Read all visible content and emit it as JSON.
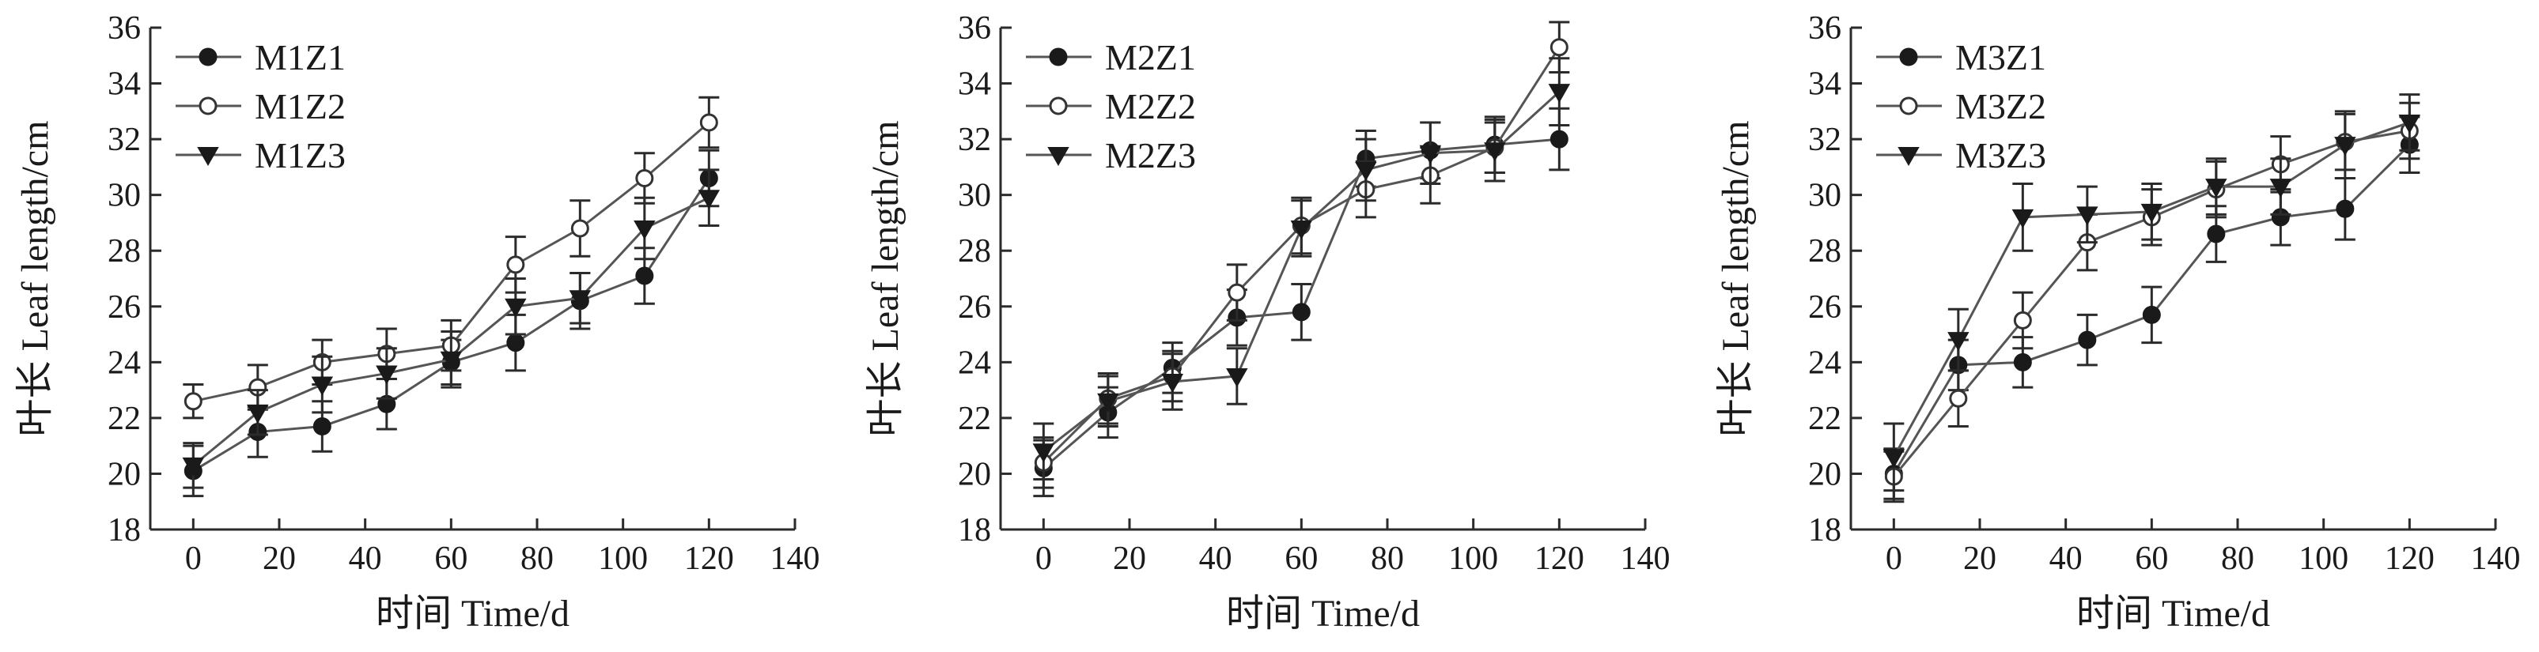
{
  "chart_data": [
    {
      "type": "line",
      "xlabel": "时间 Time/d",
      "ylabel": "叶长 Leaf length/cm",
      "xlim": [
        -10,
        140
      ],
      "ylim": [
        18,
        36
      ],
      "xticks": [
        "0",
        "20",
        "40",
        "60",
        "80",
        "100",
        "120",
        "140"
      ],
      "yticks": [
        "18",
        "20",
        "22",
        "24",
        "26",
        "28",
        "30",
        "32",
        "34",
        "36"
      ],
      "x": [
        0,
        15,
        30,
        45,
        60,
        75,
        90,
        105,
        120
      ],
      "legend": "top-left",
      "series": [
        {
          "name": "M1Z1",
          "marker": "filled-circle",
          "values": [
            20.1,
            21.5,
            21.7,
            22.5,
            24.0,
            24.7,
            26.2,
            27.1,
            30.6
          ],
          "errors": [
            0.9,
            0.9,
            0.9,
            0.9,
            0.8,
            1.0,
            1.0,
            1.0,
            1.0
          ]
        },
        {
          "name": "M1Z2",
          "marker": "open-circle",
          "values": [
            22.6,
            23.1,
            24.0,
            24.3,
            24.6,
            27.5,
            28.8,
            30.6,
            32.6
          ],
          "errors": [
            0.6,
            0.8,
            0.8,
            0.9,
            0.9,
            1.0,
            1.0,
            0.9,
            0.9
          ]
        },
        {
          "name": "M1Z3",
          "marker": "filled-triangle",
          "values": [
            20.3,
            22.2,
            23.2,
            23.6,
            24.1,
            26.0,
            26.3,
            28.8,
            29.9
          ],
          "errors": [
            0.8,
            0.8,
            1.0,
            0.9,
            1.0,
            1.0,
            0.9,
            1.1,
            1.0
          ]
        }
      ]
    },
    {
      "type": "line",
      "xlabel": "时间 Time/d",
      "ylabel": "叶长 Leaf length/cm",
      "xlim": [
        -10,
        140
      ],
      "ylim": [
        18,
        36
      ],
      "xticks": [
        "0",
        "20",
        "40",
        "60",
        "80",
        "100",
        "120",
        "140"
      ],
      "yticks": [
        "18",
        "20",
        "22",
        "24",
        "26",
        "28",
        "30",
        "32",
        "34",
        "36"
      ],
      "x": [
        0,
        15,
        30,
        45,
        60,
        75,
        90,
        105,
        120
      ],
      "legend": "top-left",
      "series": [
        {
          "name": "M2Z1",
          "marker": "filled-circle",
          "values": [
            20.2,
            22.2,
            23.8,
            25.6,
            25.8,
            31.3,
            31.6,
            31.8,
            32.0
          ],
          "errors": [
            1.0,
            0.9,
            0.9,
            1.0,
            1.0,
            1.0,
            1.0,
            1.0,
            1.1
          ]
        },
        {
          "name": "M2Z2",
          "marker": "open-circle",
          "values": [
            20.4,
            22.7,
            23.5,
            26.5,
            28.9,
            30.2,
            30.7,
            31.7,
            35.3
          ],
          "errors": [
            0.9,
            0.9,
            0.9,
            1.0,
            1.0,
            1.0,
            1.0,
            0.9,
            0.9
          ]
        },
        {
          "name": "M2Z3",
          "marker": "filled-triangle",
          "values": [
            20.8,
            22.6,
            23.3,
            23.5,
            28.8,
            30.9,
            31.5,
            31.6,
            33.7
          ],
          "errors": [
            1.0,
            0.9,
            1.0,
            1.0,
            1.0,
            1.1,
            1.1,
            1.1,
            1.2
          ]
        }
      ]
    },
    {
      "type": "line",
      "xlabel": "时间 Time/d",
      "ylabel": "叶长 Leaf length/cm",
      "xlim": [
        -10,
        140
      ],
      "ylim": [
        18,
        36
      ],
      "xticks": [
        "0",
        "20",
        "40",
        "60",
        "80",
        "100",
        "120",
        "140"
      ],
      "yticks": [
        "18",
        "20",
        "22",
        "24",
        "26",
        "28",
        "30",
        "32",
        "34",
        "36"
      ],
      "x": [
        0,
        15,
        30,
        45,
        60,
        75,
        90,
        105,
        120
      ],
      "legend": "top-left",
      "series": [
        {
          "name": "M3Z1",
          "marker": "filled-circle",
          "values": [
            20.0,
            23.9,
            24.0,
            24.8,
            25.7,
            28.6,
            29.2,
            29.5,
            31.8
          ],
          "errors": [
            0.9,
            0.9,
            0.9,
            0.9,
            1.0,
            1.0,
            1.0,
            1.1,
            1.0
          ]
        },
        {
          "name": "M3Z2",
          "marker": "open-circle",
          "values": [
            19.9,
            22.7,
            25.5,
            28.3,
            29.2,
            30.2,
            31.1,
            31.9,
            32.3
          ],
          "errors": [
            0.9,
            1.0,
            1.0,
            1.0,
            1.0,
            1.0,
            1.0,
            1.0,
            1.0
          ]
        },
        {
          "name": "M3Z3",
          "marker": "filled-triangle",
          "values": [
            20.6,
            24.8,
            29.2,
            29.3,
            29.4,
            30.3,
            30.3,
            31.8,
            32.6
          ],
          "errors": [
            1.2,
            1.1,
            1.2,
            1.0,
            1.0,
            1.0,
            1.0,
            1.2,
            1.0
          ]
        }
      ]
    }
  ]
}
